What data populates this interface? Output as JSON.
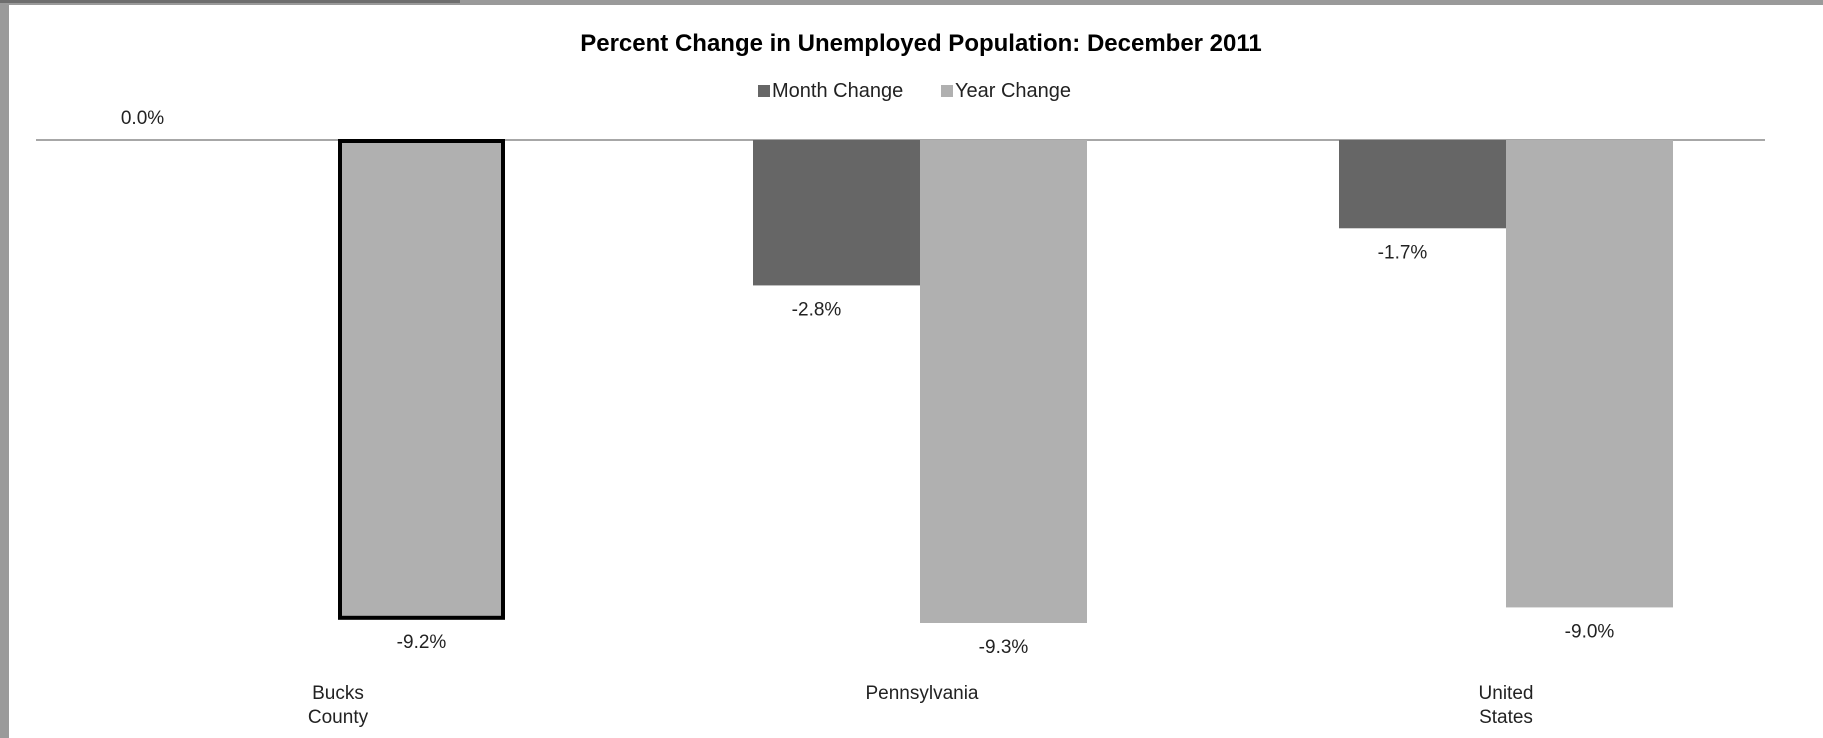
{
  "chart_data": {
    "type": "bar",
    "title": "Percent Change in Unemployed Population: December 2011",
    "categories": [
      [
        "Bucks",
        "County"
      ],
      [
        "Pennsylvania"
      ],
      [
        "United",
        "States"
      ]
    ],
    "series": [
      {
        "name": "Month Change",
        "color": "#666666",
        "values": [
          0.0,
          -2.8,
          -1.7
        ],
        "labels": [
          "0.0%",
          "-2.8%",
          "-1.7%"
        ]
      },
      {
        "name": "Year Change",
        "color": "#b0b0b0",
        "values": [
          -9.2,
          -9.3,
          -9.0
        ],
        "labels": [
          "-9.2%",
          "-9.3%",
          "-9.0%"
        ]
      }
    ],
    "ylim": [
      -9.3,
      0
    ],
    "highlight": {
      "category": "Bucks County",
      "series": "Year Change",
      "outline": "#000000"
    },
    "legend": "top-center",
    "grid": false
  }
}
